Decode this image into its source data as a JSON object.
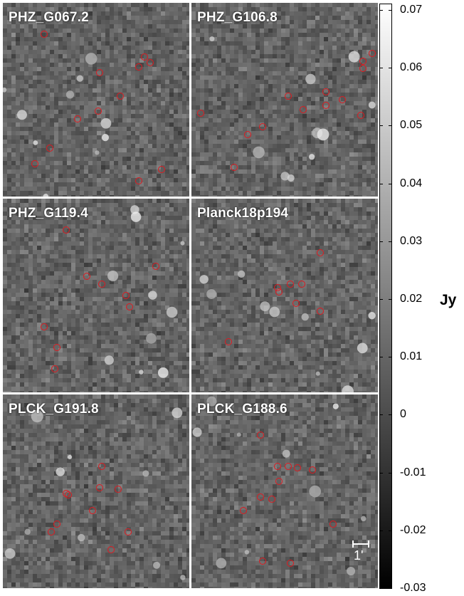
{
  "panels": [
    {
      "name": "PHZ_G067.2",
      "sources": [
        [
          0.22,
          0.16
        ],
        [
          0.52,
          0.36
        ],
        [
          0.73,
          0.33
        ],
        [
          0.76,
          0.28
        ],
        [
          0.79,
          0.31
        ],
        [
          0.63,
          0.48
        ],
        [
          0.51,
          0.56
        ],
        [
          0.4,
          0.6
        ],
        [
          0.25,
          0.75
        ],
        [
          0.17,
          0.83
        ],
        [
          0.85,
          0.86
        ],
        [
          0.73,
          0.92
        ]
      ]
    },
    {
      "name": "PHZ_G106.8",
      "sources": [
        [
          0.92,
          0.3
        ],
        [
          0.92,
          0.34
        ],
        [
          0.97,
          0.26
        ],
        [
          0.52,
          0.48
        ],
        [
          0.6,
          0.55
        ],
        [
          0.72,
          0.46
        ],
        [
          0.81,
          0.5
        ],
        [
          0.72,
          0.53
        ],
        [
          0.38,
          0.64
        ],
        [
          0.91,
          0.58
        ],
        [
          0.05,
          0.57
        ],
        [
          0.3,
          0.68
        ],
        [
          0.23,
          0.85
        ]
      ]
    },
    {
      "name": "PHZ_G119.4",
      "sources": [
        [
          0.34,
          0.16
        ],
        [
          0.45,
          0.4
        ],
        [
          0.53,
          0.44
        ],
        [
          0.82,
          0.35
        ],
        [
          0.66,
          0.5
        ],
        [
          0.68,
          0.56
        ],
        [
          0.22,
          0.66
        ],
        [
          0.29,
          0.77
        ],
        [
          0.28,
          0.88
        ]
      ]
    },
    {
      "name": "Planck18p194",
      "sources": [
        [
          0.69,
          0.28
        ],
        [
          0.46,
          0.46
        ],
        [
          0.53,
          0.44
        ],
        [
          0.59,
          0.44
        ],
        [
          0.47,
          0.48
        ],
        [
          0.56,
          0.54
        ],
        [
          0.69,
          0.58
        ],
        [
          0.2,
          0.74
        ]
      ]
    },
    {
      "name": "PLCK_G191.8",
      "sources": [
        [
          0.53,
          0.37
        ],
        [
          0.52,
          0.48
        ],
        [
          0.62,
          0.49
        ],
        [
          0.34,
          0.51
        ],
        [
          0.35,
          0.52
        ],
        [
          0.48,
          0.6
        ],
        [
          0.29,
          0.67
        ],
        [
          0.26,
          0.71
        ],
        [
          0.67,
          0.71
        ],
        [
          0.58,
          0.8
        ]
      ]
    },
    {
      "name": "PLCK_G188.6",
      "sources": [
        [
          0.37,
          0.21
        ],
        [
          0.46,
          0.37
        ],
        [
          0.52,
          0.37
        ],
        [
          0.57,
          0.38
        ],
        [
          0.65,
          0.39
        ],
        [
          0.47,
          0.45
        ],
        [
          0.37,
          0.53
        ],
        [
          0.43,
          0.54
        ],
        [
          0.28,
          0.6
        ],
        [
          0.76,
          0.67
        ],
        [
          0.38,
          0.86
        ],
        [
          0.53,
          0.87
        ]
      ]
    }
  ],
  "scalebar": {
    "label": "1'"
  },
  "colorbar": {
    "min": -0.03,
    "max": 0.07,
    "ticks": [
      "0.07",
      "0.06",
      "0.05",
      "0.04",
      "0.03",
      "0.02",
      "0.01",
      "0",
      "-0.01",
      "-0.02",
      "-0.03"
    ],
    "unit": "Jy"
  }
}
